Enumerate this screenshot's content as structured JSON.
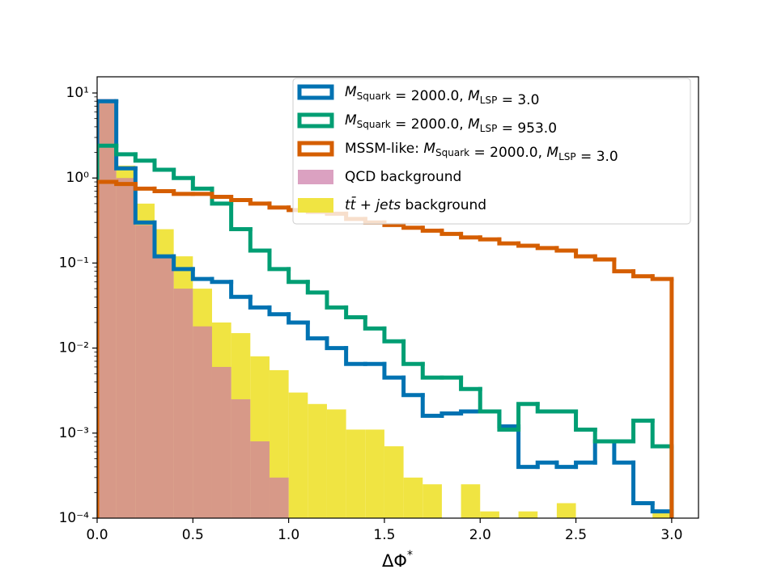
{
  "chart_data": {
    "type": "histogram",
    "xlabel": "ΔΦ*",
    "bins": [
      0.0,
      0.1,
      0.2,
      0.3,
      0.4,
      0.5,
      0.6,
      0.7,
      0.8,
      0.9,
      1.0,
      1.1,
      1.2,
      1.3,
      1.4,
      1.5,
      1.6,
      1.7,
      1.8,
      1.9,
      2.0,
      2.1,
      2.2,
      2.3,
      2.4,
      2.5,
      2.6,
      2.7,
      2.8,
      2.9,
      3.0
    ],
    "series": [
      {
        "name": "tt̄ + jets background",
        "color": "#f0e442",
        "style": "fill",
        "values": [
          8,
          1.4,
          0.5,
          0.25,
          0.12,
          0.05,
          0.02,
          0.015,
          0.008,
          0.0055,
          0.003,
          0.0022,
          0.0019,
          0.0011,
          0.0011,
          0.0007,
          0.0003,
          0.00025,
          0,
          0.00025,
          0.00012,
          0,
          0.00012,
          0,
          0.00015,
          0,
          0,
          0,
          0,
          0.00012
        ]
      },
      {
        "name": "QCD background",
        "color": "#cc79a7",
        "style": "fill",
        "values": [
          8.5,
          1.0,
          0.28,
          0.12,
          0.05,
          0.018,
          0.006,
          0.0025,
          0.0008,
          0.0003,
          0,
          0,
          0,
          0,
          0,
          0,
          0,
          0,
          0,
          0,
          0,
          0,
          0,
          0,
          0,
          0,
          0,
          0,
          0,
          0
        ]
      },
      {
        "name": "MSquark = 2000.0, MLSP = 3.0",
        "color": "#0072b2",
        "style": "step",
        "values": [
          8,
          1.3,
          0.3,
          0.12,
          0.085,
          0.065,
          0.06,
          0.04,
          0.03,
          0.025,
          0.02,
          0.013,
          0.01,
          0.0065,
          0.0065,
          0.0045,
          0.0028,
          0.0016,
          0.0017,
          0.0018,
          0.0018,
          0.0012,
          0.0004,
          0.00045,
          0.0004,
          0.00045,
          0.0008,
          0.00045,
          0.00015,
          0.00012
        ]
      },
      {
        "name": "MSquark = 2000.0, MLSP = 953.0",
        "color": "#009e73",
        "style": "step",
        "values": [
          2.4,
          1.9,
          1.6,
          1.25,
          1.0,
          0.75,
          0.5,
          0.25,
          0.14,
          0.085,
          0.06,
          0.045,
          0.03,
          0.023,
          0.017,
          0.012,
          0.0065,
          0.0045,
          0.0045,
          0.0033,
          0.0018,
          0.0011,
          0.0022,
          0.0018,
          0.0018,
          0.0011,
          0.0008,
          0.0008,
          0.0014,
          0.0007
        ]
      },
      {
        "name": "MSSM-like: MSquark = 2000.0, MLSP = 3.0",
        "color": "#d55e00",
        "style": "step",
        "values": [
          0.9,
          0.85,
          0.75,
          0.7,
          0.65,
          0.65,
          0.6,
          0.55,
          0.5,
          0.45,
          0.42,
          0.4,
          0.38,
          0.33,
          0.3,
          0.28,
          0.26,
          0.24,
          0.22,
          0.2,
          0.19,
          0.17,
          0.16,
          0.15,
          0.14,
          0.12,
          0.11,
          0.08,
          0.07,
          0.065
        ]
      }
    ],
    "legend_order": [
      2,
      3,
      4,
      1,
      0
    ],
    "log_y": true,
    "xlim": [
      0,
      3.14
    ],
    "ylim": [
      0.0001,
      15.5
    ],
    "xticks": [
      {
        "value": 0,
        "label": "0.0"
      },
      {
        "value": 0.5,
        "label": "0.5"
      },
      {
        "value": 1,
        "label": "1.0"
      },
      {
        "value": 1.5,
        "label": "1.5"
      },
      {
        "value": 2,
        "label": "2.0"
      },
      {
        "value": 2.5,
        "label": "2.5"
      },
      {
        "value": 3,
        "label": "3.0"
      }
    ],
    "yticks": [
      {
        "value": 0.0001,
        "label": "10⁻⁴"
      },
      {
        "value": 0.001,
        "label": "10⁻³"
      },
      {
        "value": 0.01,
        "label": "10⁻²"
      },
      {
        "value": 0.1,
        "label": "10⁻¹"
      },
      {
        "value": 1,
        "label": "10⁰"
      },
      {
        "value": 10,
        "label": "10¹"
      }
    ],
    "legend": "upper right"
  }
}
